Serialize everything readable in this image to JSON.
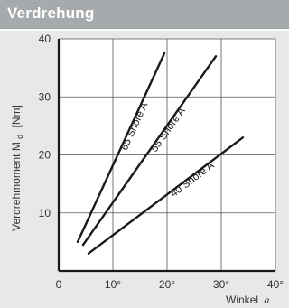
{
  "header": {
    "title": "Verdrehung"
  },
  "colors": {
    "header_bg": "#a7aaac",
    "page_bg": "#e7e8e8",
    "plot_bg": "#ffffff",
    "axis": "#1a1a1a",
    "grid": "#555555"
  },
  "chart_data": {
    "type": "line",
    "title": "Verdrehung",
    "xlabel": "Winkel",
    "xlabel_symbol": "a",
    "ylabel": "Verdrehmoment M",
    "ylabel_subscript": "d",
    "ylabel_unit": "[Nm]",
    "x_tick_labels": [
      "0",
      "10°",
      "20°",
      "30°",
      "40°"
    ],
    "x_ticks": [
      0,
      10,
      20,
      30,
      40
    ],
    "y_tick_labels": [
      "10",
      "20",
      "30",
      "40"
    ],
    "y_ticks": [
      10,
      20,
      30,
      40
    ],
    "xlim": [
      0,
      40
    ],
    "ylim": [
      0,
      40
    ],
    "grid": true,
    "series": [
      {
        "name": "65 Shore A",
        "x": [
          3.5,
          19.5
        ],
        "y": [
          5,
          37.5
        ]
      },
      {
        "name": "55 Shore A",
        "x": [
          4.5,
          29
        ],
        "y": [
          4.5,
          37
        ]
      },
      {
        "name": "40 Shore A",
        "x": [
          5.5,
          34
        ],
        "y": [
          3,
          23
        ]
      }
    ]
  }
}
